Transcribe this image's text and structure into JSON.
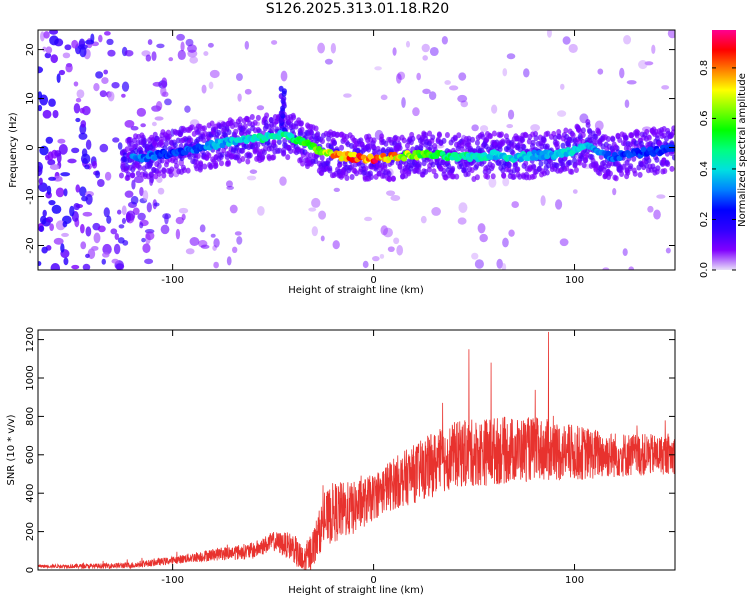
{
  "title": "S126.2025.313.01.18.R20",
  "chart_data": [
    {
      "type": "heatmap",
      "xlabel": "Height of straight line (km)",
      "ylabel": "Frequency (Hz)",
      "xlim": [
        -167,
        150
      ],
      "ylim": [
        -25,
        24
      ],
      "xticks": [
        -100,
        0,
        100
      ],
      "yticks": [
        -20,
        -10,
        0,
        10,
        20
      ],
      "colorbar": {
        "label": "Normalized spectral amplitude",
        "range": [
          0.0,
          0.95
        ],
        "ticks": [
          0.0,
          0.2,
          0.4,
          0.6,
          0.8
        ],
        "tick_labels": [
          "0.0",
          "0.2",
          "0.4",
          "0.6",
          "0.8"
        ],
        "colormap": [
          "#ffffff",
          "#8000ff",
          "#3000ff",
          "#0000ff",
          "#0080ff",
          "#00e0e0",
          "#00ff80",
          "#00ff00",
          "#80ff00",
          "#ffff00",
          "#ff8000",
          "#ff0000",
          "#ff0090"
        ]
      },
      "ridge": {
        "x": [
          -115,
          -100,
          -85,
          -75,
          -65,
          -55,
          -48,
          -42,
          -35,
          -28,
          -20,
          -10,
          0,
          10,
          20,
          30,
          40,
          50,
          60,
          70,
          80,
          90,
          100,
          106,
          112,
          118,
          125,
          135,
          145,
          150
        ],
        "frequency": [
          -2,
          -1,
          0,
          1,
          1.5,
          2,
          2.5,
          2.5,
          1,
          -0.5,
          -1.5,
          -2,
          -2.2,
          -2,
          -1.5,
          -1.5,
          -2,
          -2,
          -1.5,
          -2,
          -1.5,
          -1.5,
          -0.5,
          1,
          -1,
          -2,
          -1.5,
          -1,
          -0.5,
          0
        ],
        "peak_amplitude": [
          0.35,
          0.3,
          0.35,
          0.4,
          0.45,
          0.5,
          0.5,
          0.5,
          0.6,
          0.7,
          0.85,
          0.9,
          0.95,
          0.85,
          0.7,
          0.6,
          0.55,
          0.5,
          0.45,
          0.45,
          0.4,
          0.4,
          0.45,
          0.4,
          0.35,
          0.35,
          0.3,
          0.3,
          0.3,
          0.3
        ]
      },
      "spur": {
        "x": -45,
        "frequency_range": [
          3,
          12
        ]
      }
    },
    {
      "type": "line",
      "xlabel": "Height of straight line (km)",
      "ylabel": "SNR (10 * v/v)",
      "xlim": [
        -167,
        150
      ],
      "ylim": [
        0,
        1250
      ],
      "xticks": [
        -100,
        0,
        100
      ],
      "yticks": [
        0,
        200,
        400,
        600,
        800,
        1000,
        1200
      ],
      "color": "#e8322e",
      "trend": {
        "x": [
          -167,
          -140,
          -120,
          -100,
          -80,
          -60,
          -50,
          -40,
          -35,
          -30,
          -25,
          -20,
          -10,
          0,
          5,
          10,
          20,
          30,
          40,
          60,
          80,
          100,
          120,
          150
        ],
        "snr": [
          20,
          20,
          25,
          50,
          80,
          100,
          150,
          120,
          30,
          120,
          250,
          300,
          320,
          380,
          420,
          450,
          500,
          550,
          600,
          620,
          630,
          610,
          600,
          600
        ]
      },
      "noise_amplitude": {
        "x": [
          -167,
          -100,
          -50,
          -30,
          -20,
          0,
          30,
          60,
          90,
          120,
          150
        ],
        "value": [
          8,
          20,
          50,
          100,
          160,
          120,
          170,
          180,
          160,
          120,
          100
        ]
      },
      "peaks": [
        {
          "x": 47.5,
          "snr": 1150
        },
        {
          "x": 58.5,
          "snr": 1080
        },
        {
          "x": 87,
          "snr": 1240
        }
      ]
    }
  ]
}
